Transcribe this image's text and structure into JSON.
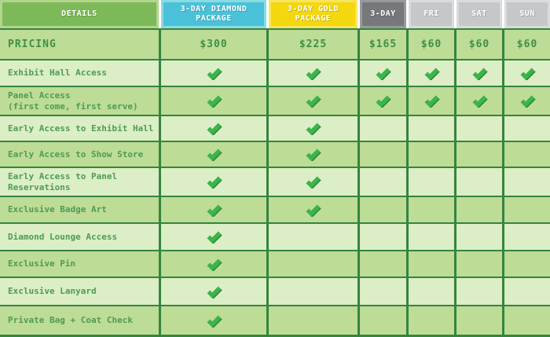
{
  "chart_data": {
    "type": "table",
    "title": "Event ticket package comparison table",
    "columns": [
      "DETAILS",
      "3-DAY DIAMOND PACKAGE",
      "3-DAY GOLD PACKAGE",
      "3-DAY",
      "FRI",
      "SAT",
      "SUN"
    ],
    "pricing": {
      "label": "PRICING",
      "values": [
        "$300",
        "$225",
        "$165",
        "$60",
        "$60",
        "$60"
      ]
    },
    "features": [
      {
        "label": "Exhibit Hall Access",
        "checks": [
          true,
          true,
          true,
          true,
          true,
          true
        ]
      },
      {
        "label": "Panel Access",
        "sublabel": "(first come, first serve)",
        "checks": [
          true,
          true,
          true,
          true,
          true,
          true
        ]
      },
      {
        "label": "Early Access to Exhibit Hall",
        "checks": [
          true,
          true,
          false,
          false,
          false,
          false
        ]
      },
      {
        "label": "Early Access to Show Store",
        "checks": [
          true,
          true,
          false,
          false,
          false,
          false
        ]
      },
      {
        "label": "Early Access to Panel Reservations",
        "checks": [
          true,
          true,
          false,
          false,
          false,
          false
        ]
      },
      {
        "label": "Exclusive Badge Art",
        "checks": [
          true,
          true,
          false,
          false,
          false,
          false
        ]
      },
      {
        "label": "Diamond Lounge Access",
        "checks": [
          true,
          false,
          false,
          false,
          false,
          false
        ]
      },
      {
        "label": "Exclusive Pin",
        "checks": [
          true,
          false,
          false,
          false,
          false,
          false
        ]
      },
      {
        "label": "Exclusive Lanyard",
        "checks": [
          true,
          false,
          false,
          false,
          false,
          false
        ]
      },
      {
        "label": "Private Bag + Coat Check",
        "checks": [
          true,
          false,
          false,
          false,
          false,
          false
        ]
      }
    ]
  },
  "header_styles": [
    {
      "id": "details",
      "bg": "#7db959",
      "border": "#b2d68b",
      "text": "#ffffff"
    },
    {
      "id": "diamond-package",
      "bg": "#4ac1d9",
      "border": "#8adbe4",
      "text": "#ffffff"
    },
    {
      "id": "gold-package",
      "bg": "#f4d70e",
      "border": "#f7e45f",
      "text": "#ffffff"
    },
    {
      "id": "three-day",
      "bg": "#77787a",
      "border": "#98999c",
      "text": "#ffffff"
    },
    {
      "id": "fri",
      "bg": "#c6c7c9",
      "border": "#dadbdc",
      "text": "#ffffff"
    },
    {
      "id": "sat",
      "bg": "#c6c7c9",
      "border": "#dadbdc",
      "text": "#ffffff"
    },
    {
      "id": "sun",
      "bg": "#c6c7c9",
      "border": "#dadbdc",
      "text": "#ffffff"
    }
  ],
  "colors": {
    "row_dark": "#bddc95",
    "row_light": "#dbeec6",
    "grid_line": "#35843f",
    "label_text": "#4e9b54",
    "price_text": "#3e9045",
    "check_main": "#3cb44c",
    "check_shadow": "#2f8d3c",
    "page_bg": "#ffffff"
  }
}
